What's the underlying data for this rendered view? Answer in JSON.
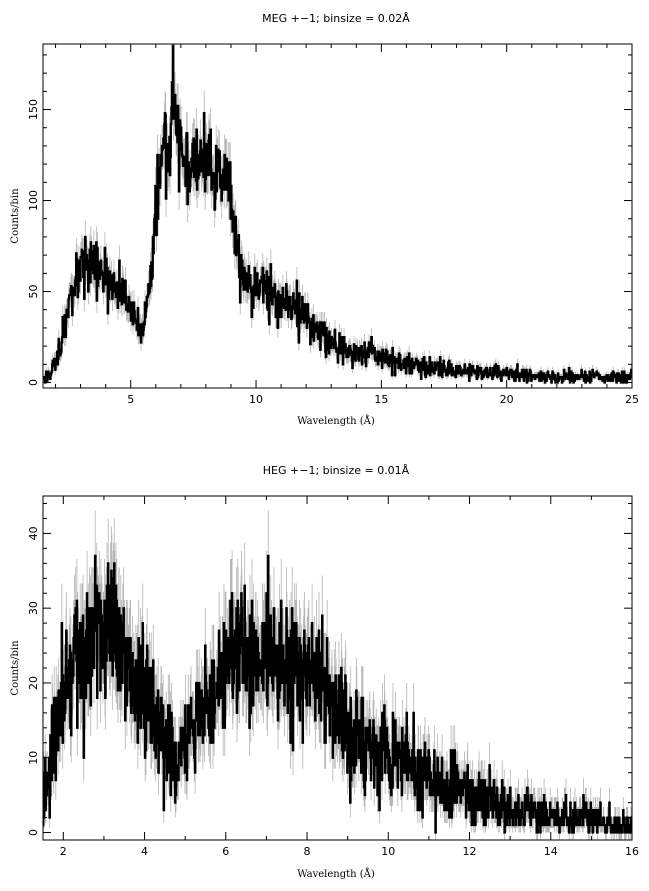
{
  "chart_data": [
    {
      "type": "line",
      "title": "MEG +−1; binsize = 0.02Å",
      "xlabel": "Wavelength (Å)",
      "ylabel": "Counts/bin",
      "xlim": [
        1.5,
        25
      ],
      "ylim": [
        -3,
        186
      ],
      "xticks": [
        5,
        10,
        15,
        20,
        25
      ],
      "yticks": [
        0,
        50,
        100,
        150
      ],
      "grid": false,
      "x": [
        1.5,
        1.8,
        2.0,
        2.3,
        2.6,
        3.0,
        3.3,
        3.6,
        4.0,
        4.3,
        4.6,
        5.0,
        5.3,
        5.5,
        5.7,
        5.9,
        6.0,
        6.1,
        6.3,
        6.5,
        6.7,
        6.8,
        7.0,
        7.3,
        7.6,
        8.0,
        8.3,
        8.6,
        8.9,
        9.1,
        9.3,
        9.5,
        9.8,
        10.0,
        10.5,
        11.0,
        11.5,
        12.0,
        12.5,
        13.0,
        13.5,
        14.0,
        14.5,
        15.0,
        16.0,
        17.0,
        18.0,
        19.0,
        20.0,
        21.0,
        22.0,
        23.0,
        24.0,
        25.0
      ],
      "series": [
        {
          "values": [
            2,
            5,
            12,
            25,
            45,
            60,
            65,
            60,
            58,
            52,
            50,
            42,
            35,
            25,
            45,
            70,
            95,
            110,
            130,
            125,
            170,
            145,
            125,
            120,
            118,
            120,
            118,
            115,
            110,
            90,
            70,
            55,
            50,
            55,
            52,
            45,
            42,
            35,
            28,
            22,
            18,
            15,
            18,
            14,
            10,
            8,
            7,
            6,
            5,
            4,
            3,
            3,
            3,
            3
          ],
          "color": "#000000",
          "error_color": "#b4b4b4"
        }
      ]
    },
    {
      "type": "line",
      "title": "HEG +−1; binsize = 0.01Å",
      "xlabel": "Wavelength (Å)",
      "ylabel": "Counts/bin",
      "xlim": [
        1.5,
        16
      ],
      "ylim": [
        -1,
        45
      ],
      "xticks": [
        2,
        4,
        6,
        8,
        10,
        12,
        14,
        16
      ],
      "yticks": [
        0,
        10,
        20,
        30,
        40
      ],
      "grid": false,
      "x": [
        1.5,
        1.7,
        2.0,
        2.3,
        2.6,
        3.0,
        3.3,
        3.6,
        4.0,
        4.3,
        4.6,
        4.8,
        5.0,
        5.3,
        5.6,
        5.9,
        6.1,
        6.3,
        6.5,
        6.8,
        7.0,
        7.3,
        7.6,
        8.0,
        8.3,
        8.6,
        9.0,
        9.5,
        10.0,
        10.5,
        11.0,
        11.5,
        12.0,
        12.5,
        13.0,
        13.5,
        14.0,
        14.5,
        15.0,
        15.5,
        16.0
      ],
      "series": [
        {
          "values": [
            4,
            10,
            18,
            23,
            24,
            27,
            25,
            22,
            18,
            15,
            12,
            9,
            12,
            15,
            17,
            20,
            25,
            26,
            24,
            22,
            24,
            23,
            22,
            22,
            19,
            17,
            14,
            12,
            10,
            9,
            7,
            6,
            5,
            4,
            3,
            3,
            2,
            2,
            2,
            1,
            1
          ],
          "color": "#000000",
          "error_color": "#b4b4b4"
        }
      ]
    }
  ]
}
